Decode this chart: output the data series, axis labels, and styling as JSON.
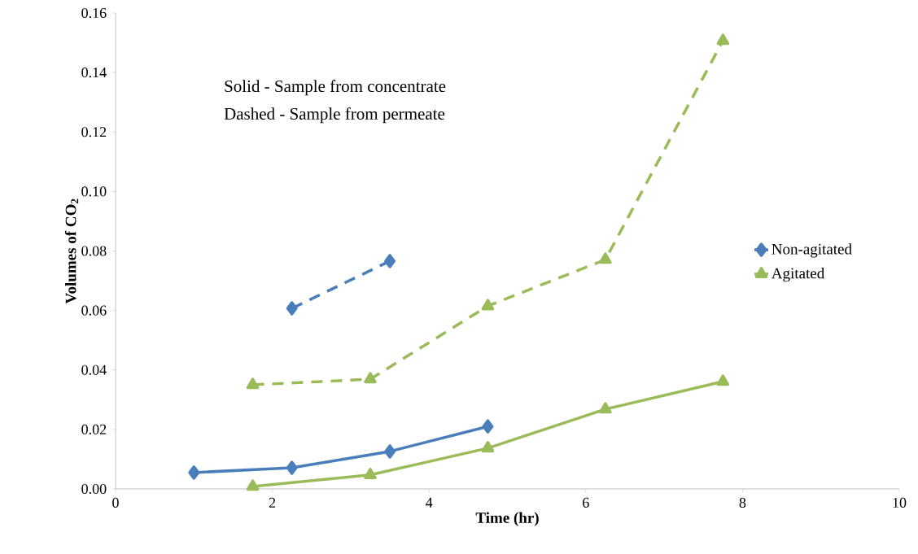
{
  "chart_data": {
    "type": "line",
    "xlabel": "Time (hr)",
    "ylabel": "Volumes of CO$_{2}$",
    "annotations": [
      "Solid - Sample from concentrate",
      "Dashed - Sample from permeate"
    ],
    "series": [
      {
        "name": "Non-agitated",
        "color": "#4a7ebb",
        "marker": "diamond",
        "line_style": "solid",
        "x": [
          1.0,
          2.25,
          3.5,
          4.75
        ],
        "values": [
          0.0055,
          0.0071,
          0.0126,
          0.021
        ]
      },
      {
        "name": "Agitated",
        "color": "#9bbb59",
        "marker": "triangle",
        "line_style": "solid",
        "x": [
          1.75,
          3.25,
          4.75,
          6.25,
          7.75
        ],
        "values": [
          0.0008,
          0.0047,
          0.0137,
          0.0268,
          0.0361
        ]
      },
      {
        "color": "#4a7ebb",
        "marker": "diamond",
        "line_style": "dashed",
        "x": [
          2.25,
          3.5
        ],
        "values": [
          0.0607,
          0.0766
        ]
      },
      {
        "color": "#9bbb59",
        "marker": "triangle",
        "line_style": "dashed",
        "x": [
          1.75,
          3.25,
          4.75,
          6.25,
          7.75
        ],
        "values": [
          0.035,
          0.0369,
          0.0615,
          0.0771,
          0.1507
        ]
      }
    ],
    "xlim": [
      0,
      10
    ],
    "xticks": [
      0,
      2,
      4,
      6,
      8,
      10
    ],
    "ylim": [
      0,
      0.16
    ],
    "yticks": [
      {
        "value": 0,
        "label": "0.00"
      },
      {
        "value": 0.02,
        "label": "0.02"
      },
      {
        "value": 0.04,
        "label": "0.04"
      },
      {
        "value": 0.06,
        "label": "0.06"
      },
      {
        "value": 0.08,
        "label": "0.08"
      },
      {
        "value": 0.1,
        "label": "0.10"
      },
      {
        "value": 0.12,
        "label": "0.12"
      },
      {
        "value": 0.14,
        "label": "0.14"
      },
      {
        "value": 0.16,
        "label": "0.16"
      }
    ],
    "grid": false,
    "legend": "right"
  }
}
